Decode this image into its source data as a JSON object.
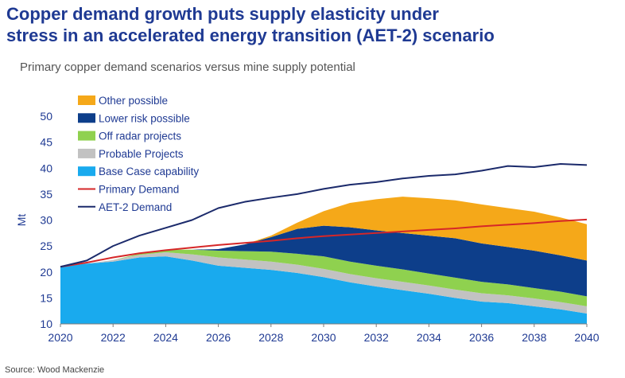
{
  "title_lines": [
    "Copper demand growth puts supply elasticity under",
    "stress in an accelerated energy transition (AET-2) scenario"
  ],
  "subtitle": "Primary copper demand scenarios versus mine supply potential",
  "source": "Source: Wood Mackenzie",
  "colors": {
    "other_possible": "#f5a819",
    "lower_risk": "#0d3e8a",
    "off_radar": "#8fd14f",
    "probable": "#c2c2c2",
    "base_case": "#19aaee",
    "primary_demand": "#d62728",
    "aet2_demand": "#1b2a6b",
    "axis_text": "#1f3a93"
  },
  "chart_data": {
    "type": "area",
    "ylabel": "Mt",
    "ylim": [
      10,
      50
    ],
    "xlim": [
      2020,
      2040
    ],
    "x_ticks": [
      "2020",
      "2022",
      "2024",
      "2026",
      "2028",
      "2030",
      "2032",
      "2034",
      "2036",
      "2038",
      "2040"
    ],
    "y_ticks": [
      "10",
      "15",
      "20",
      "25",
      "30",
      "35",
      "40",
      "45",
      "50"
    ],
    "grid": false,
    "legend_position": "top-left",
    "x": [
      2020,
      2021,
      2022,
      2023,
      2024,
      2025,
      2026,
      2027,
      2028,
      2029,
      2030,
      2031,
      2032,
      2033,
      2034,
      2035,
      2036,
      2037,
      2038,
      2039,
      2040
    ],
    "stacked_series": [
      {
        "name": "Base Case capability",
        "values": [
          21,
          21.6,
          22.0,
          22.8,
          23.0,
          22.2,
          21.2,
          20.8,
          20.4,
          19.8,
          19.0,
          18.0,
          17.2,
          16.5,
          15.8,
          15.0,
          14.3,
          14.0,
          13.4,
          12.8,
          12.0
        ]
      },
      {
        "name": "Probable Projects",
        "values": [
          0,
          0,
          0.3,
          0.5,
          0.8,
          1.2,
          1.6,
          1.6,
          1.6,
          1.6,
          1.6,
          1.6,
          1.6,
          1.6,
          1.6,
          1.6,
          1.6,
          1.5,
          1.5,
          1.4,
          1.4
        ]
      },
      {
        "name": "Off radar projects",
        "values": [
          0,
          0,
          0,
          0.2,
          0.5,
          0.9,
          1.3,
          1.6,
          1.9,
          2.1,
          2.4,
          2.4,
          2.4,
          2.4,
          2.3,
          2.3,
          2.2,
          2.1,
          2.0,
          2.0,
          1.9
        ]
      },
      {
        "name": "Lower risk possible",
        "values": [
          0,
          0,
          0,
          0,
          0,
          0,
          0.3,
          1.3,
          2.8,
          4.8,
          5.9,
          6.6,
          6.8,
          7.0,
          7.3,
          7.6,
          7.4,
          7.2,
          7.2,
          7.0,
          6.9
        ]
      },
      {
        "name": "Other possible",
        "values": [
          0,
          0,
          0,
          0,
          0,
          0,
          0,
          0,
          0.3,
          1.2,
          2.8,
          4.7,
          6.0,
          7.0,
          7.2,
          7.3,
          7.5,
          7.5,
          7.5,
          7.3,
          7.0
        ]
      }
    ],
    "line_series": [
      {
        "name": "Primary Demand",
        "values": [
          21.0,
          21.8,
          22.8,
          23.6,
          24.2,
          24.7,
          25.2,
          25.6,
          26.0,
          26.5,
          26.9,
          27.2,
          27.5,
          27.8,
          28.1,
          28.4,
          28.8,
          29.1,
          29.4,
          29.8,
          30.1
        ]
      },
      {
        "name": "AET-2 Demand",
        "values": [
          21.0,
          22.2,
          25.0,
          27.0,
          28.5,
          30.0,
          32.3,
          33.5,
          34.3,
          35.0,
          36.0,
          36.8,
          37.3,
          38.0,
          38.5,
          38.8,
          39.5,
          40.4,
          40.2,
          40.8,
          40.6
        ]
      }
    ],
    "legend_order": [
      "Other possible",
      "Lower risk possible",
      "Off radar projects",
      "Probable Projects",
      "Base Case capability",
      "Primary Demand",
      "AET-2 Demand"
    ]
  }
}
